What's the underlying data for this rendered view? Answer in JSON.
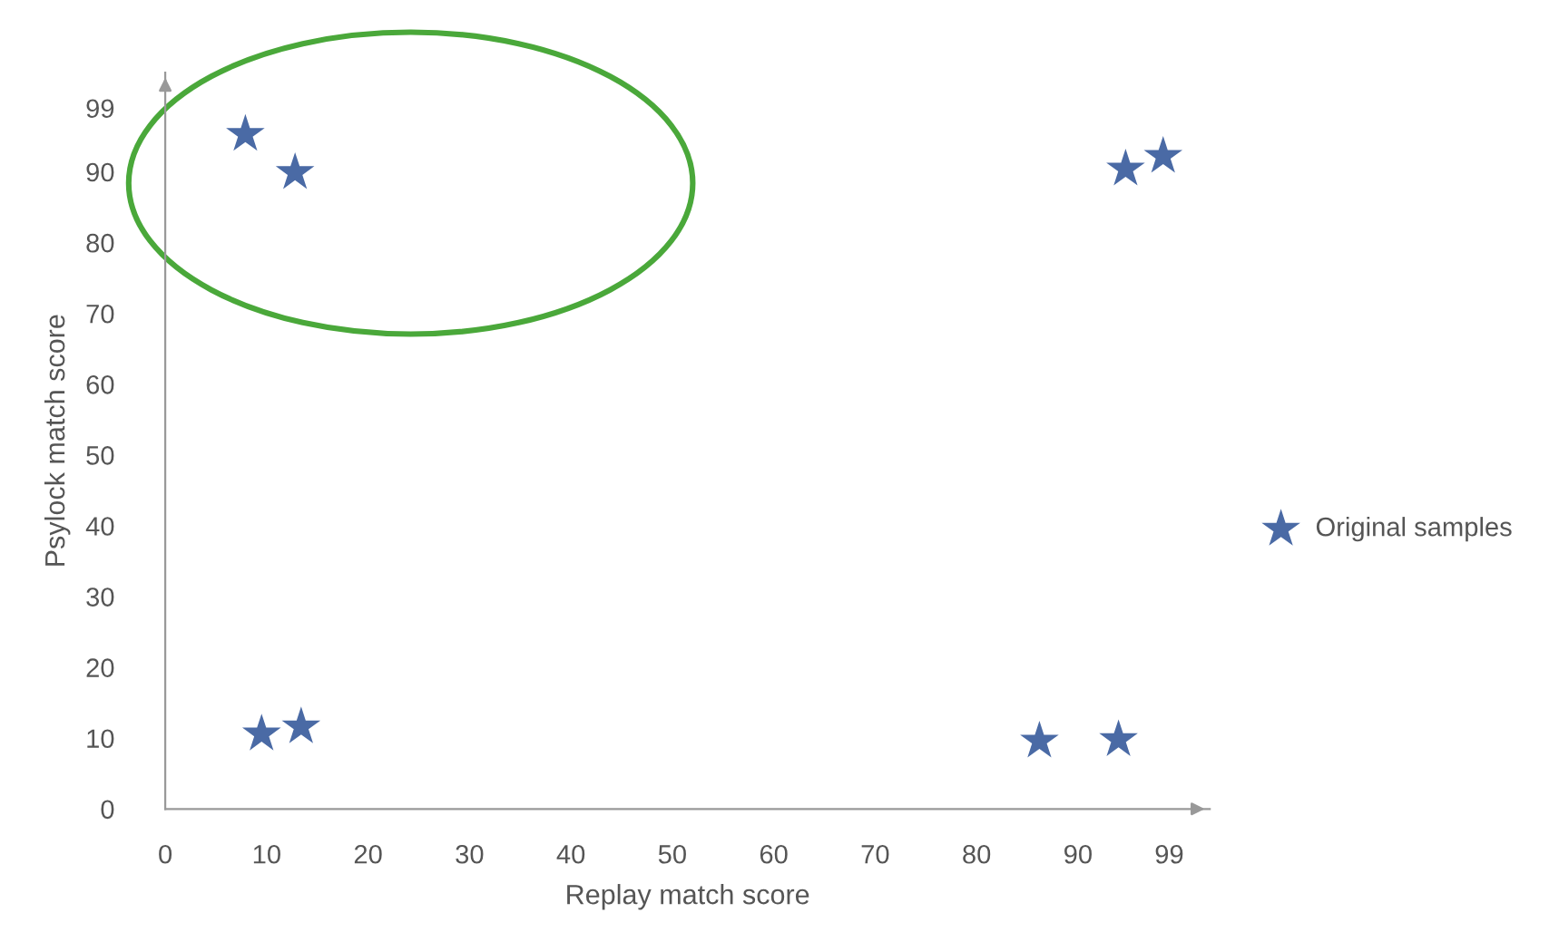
{
  "chart_data": {
    "type": "scatter",
    "xlabel": "Replay match score",
    "ylabel": "Psylock match score",
    "x": [
      7.9,
      12.8,
      94.7,
      98.4,
      9.5,
      13.4,
      86.2,
      94.0
    ],
    "series": [
      {
        "name": "Original samples",
        "color": "#4a6aa5",
        "values": [
          95.3,
          89.9,
          90.4,
          92.2,
          10.6,
          11.6,
          9.6,
          9.8
        ]
      }
    ],
    "xlim": [
      0,
      103
    ],
    "ylim": [
      0,
      104
    ],
    "xticks": [
      0,
      10,
      20,
      30,
      40,
      50,
      60,
      70,
      80,
      90,
      99
    ],
    "yticks": [
      0,
      10,
      20,
      30,
      40,
      50,
      60,
      70,
      80,
      90,
      99
    ],
    "marker": "star",
    "grid": false,
    "legend": "right"
  }
}
